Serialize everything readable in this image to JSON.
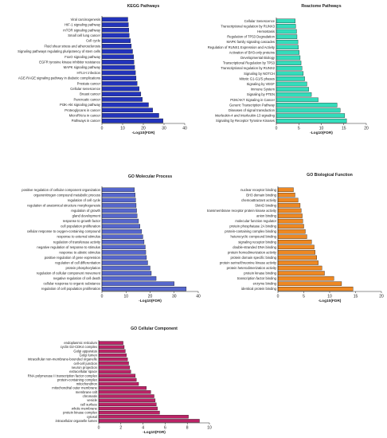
{
  "chart_data": [
    {
      "type": "bar",
      "orientation": "horizontal",
      "title": "KEGG Pathways",
      "xlabel": "-Log10(FDR)",
      "xlim": [
        0,
        40
      ],
      "xticks": [
        "0",
        "10",
        "20",
        "30",
        "40"
      ],
      "bar_color": "#2233bb",
      "categories": [
        "Viral carcinogenesis",
        "HIF-1 signaling pathway",
        "mTOR signaling pathway",
        "Small cell lung cancer",
        "Cell cycle",
        "Fluid shear stress and atherosclerosis",
        "Signaling pathways regulating pluripotency of stem cells",
        "FoxO signaling pathway",
        "EGFR tyrosine kinase inhibitor resistance",
        "MAPK signaling pathway",
        "HTLV-I infection",
        "AGE-RAGE signaling pathway in diabetic complications",
        "Prostate cancer",
        "Cellular senescence",
        "Breast cancer",
        "Pancreatic cancer",
        "PI3K-Akt signaling pathway",
        "Proteoglycans in cancer",
        "MicroRNAs in cancer",
        "Pathways in cancer"
      ],
      "values": [
        12.5,
        12.8,
        13.0,
        13.2,
        13.8,
        14.2,
        14.8,
        15.3,
        15.5,
        15.8,
        16.2,
        16.5,
        17.0,
        18.0,
        18.8,
        19.5,
        22.5,
        24.5,
        27.5,
        29.5
      ]
    },
    {
      "type": "bar",
      "orientation": "horizontal",
      "title": "Reactome Pathways",
      "xlabel": "-Log10(FDR)",
      "xlim": [
        0,
        20
      ],
      "xticks": [
        "0",
        "5",
        "10",
        "15",
        "20"
      ],
      "bar_color": "#33ddbb",
      "categories": [
        "Cellular Senescence",
        "Transcriptional regulation by RUNX3",
        "Hemostasis",
        "Regulation of TP53 Degradation",
        "MAPK family signaling cascades",
        "Regulation of RUNX1 Expression and Activity",
        "Activation of BH3-only proteins",
        "Developmental Biology",
        "Transcriptional Regulation by TP53",
        "Transcriptional regulation by RUNX2",
        "Signaling by NOTCH",
        "Mitotic G1-G1/S phases",
        "Signaling by VEGF",
        "Immune System",
        "Signaling by PTEN",
        "PI3K/AKT Signaling in Cancer",
        "Generic Transcription Pathway",
        "Diseases of signal transduction",
        "Interleukin-4 and Interleukin-13 signaling",
        "Signaling by Receptor Tyrosine Kinases"
      ],
      "values": [
        4.2,
        4.3,
        4.5,
        4.6,
        4.8,
        4.9,
        5.1,
        5.3,
        5.5,
        5.7,
        6.0,
        6.3,
        6.8,
        7.2,
        7.8,
        9.3,
        13.5,
        14.2,
        15.2,
        15.6
      ]
    },
    {
      "type": "bar",
      "orientation": "horizontal",
      "title": "GO Molecular Process",
      "xlabel": "-Log10(FDR)",
      "xlim": [
        0,
        40
      ],
      "xticks": [
        "0",
        "10",
        "20",
        "30",
        "40"
      ],
      "bar_color": "#5566cc",
      "categories": [
        "positive regulation of cellular component organization",
        "organonitrogen compound metabolic process",
        "regulation of cell cycle",
        "regulation of anatomical structure morphogenesis",
        "regulation of growth",
        "gland development",
        "response to growth factor",
        "cell population proliferation",
        "cellular response to oxygen-containing compound",
        "response to external stimulus",
        "regulation of transferase activity",
        "negative regulation of response to stimulus",
        "response to abiotic stimulus",
        "positive regulation of gene expression",
        "regulation of cell differentiation",
        "protein phosphorylation",
        "regulation of cellular component movement",
        "negative regulation of cell death",
        "cellular response to organic substance",
        "regulation of cell population proliferation"
      ],
      "values": [
        13.5,
        13.8,
        14.0,
        14.2,
        14.4,
        14.6,
        15.2,
        15.8,
        16.5,
        17.0,
        17.5,
        18.0,
        18.2,
        18.5,
        19.0,
        20.0,
        20.5,
        22.5,
        30.0,
        35.0
      ]
    },
    {
      "type": "bar",
      "orientation": "horizontal",
      "title": "GO Biological Function",
      "xlabel": "-Log10(FDR)",
      "xlim": [
        0,
        20
      ],
      "xticks": [
        "0",
        "5",
        "10",
        "15",
        "20"
      ],
      "bar_color": "#ee8822",
      "categories": [
        "nuclear receptor binding",
        "BH3 domain binding",
        "chemoattractant activity",
        "SMAD binding",
        "transmembrane receptor protein kinase activity",
        "anion binding",
        "molecular function regulator",
        "protein phosphatase 2A binding",
        "protein-containing complex binding",
        "heterocyclic compound binding",
        "signaling receptor binding",
        "double-stranded DNA binding",
        "protein homodimerization activity",
        "protein domain specific binding",
        "protein serine/threonine kinase activity",
        "protein heterodimerization activity",
        "protein kinase binding",
        "transcription factor binding",
        "enzyme binding",
        "identical protein binding"
      ],
      "values": [
        3.0,
        3.3,
        3.9,
        4.3,
        4.5,
        4.7,
        4.8,
        5.0,
        5.3,
        5.6,
        6.5,
        7.0,
        7.2,
        7.5,
        7.8,
        8.5,
        9.0,
        10.8,
        12.3,
        14.5
      ]
    },
    {
      "type": "bar",
      "orientation": "horizontal",
      "title": "GO Cellular Component",
      "xlabel": "-Log10(FDR)",
      "xlim": [
        0,
        10
      ],
      "xticks": [
        "0",
        "2",
        "4",
        "6",
        "8",
        "10"
      ],
      "bar_color": "#bb2266",
      "categories": [
        "endoplasmic reticulum",
        "cyclin D2-CDK4 complex",
        "Golgi apparatus",
        "Golgi lumen",
        "intracellular non-membrane-bounded organelle",
        "cell-cell junction",
        "neuron projection",
        "extracellular space",
        "RNA polymerase II transcription factor complex",
        "protein-containing complex",
        "mitochondrion",
        "mitochondrial outer membrane",
        "membrane raft",
        "chromatin",
        "vesicle",
        "cell surface",
        "whole membrane",
        "protein kinase complex",
        "cytosol",
        "intracellular organelle lumen"
      ],
      "values": [
        2.2,
        2.3,
        2.4,
        2.5,
        2.6,
        2.7,
        2.8,
        2.9,
        3.3,
        3.4,
        3.6,
        4.3,
        4.7,
        5.0,
        5.1,
        5.2,
        5.3,
        5.5,
        8.1,
        9.1
      ]
    }
  ]
}
